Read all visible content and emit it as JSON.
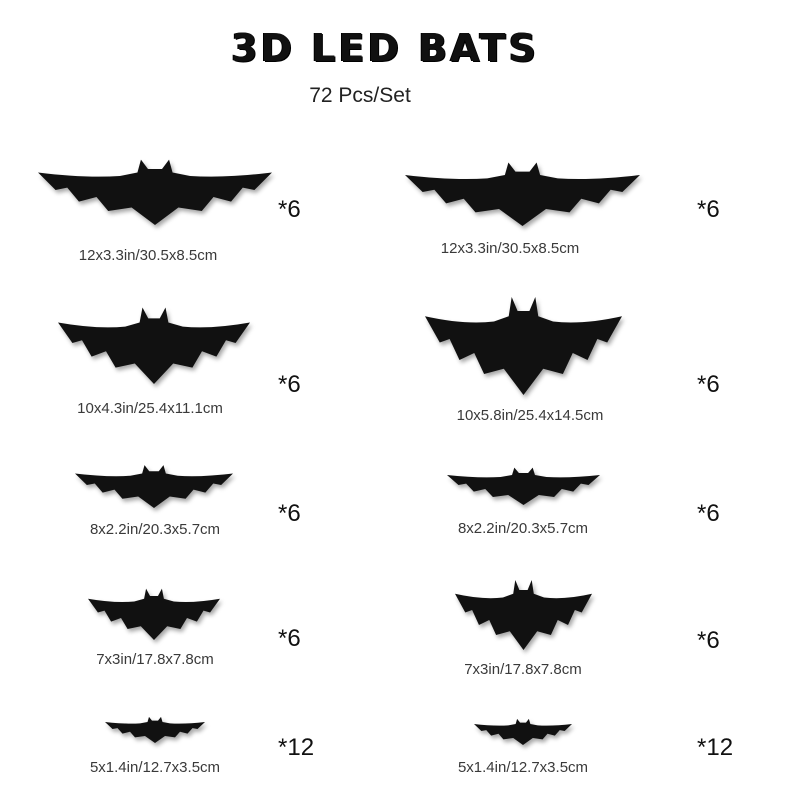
{
  "title": "3D LED BATS",
  "subtitle": "72 Pcs/Set",
  "bat_color": "#111111",
  "items": [
    {
      "size": "12x3.3in/30.5x8.5cm",
      "qty": "*6"
    },
    {
      "size": "12x3.3in/30.5x8.5cm",
      "qty": "*6"
    },
    {
      "size": "10x4.3in/25.4x11.1cm",
      "qty": "*6"
    },
    {
      "size": "10x5.8in/25.4x14.5cm",
      "qty": "*6"
    },
    {
      "size": "8x2.2in/20.3x5.7cm",
      "qty": "*6"
    },
    {
      "size": "8x2.2in/20.3x5.7cm",
      "qty": "*6"
    },
    {
      "size": "7x3in/17.8x7.8cm",
      "qty": "*6"
    },
    {
      "size": "7x3in/17.8x7.8cm",
      "qty": "*6"
    },
    {
      "size": "5x1.4in/12.7x3.5cm",
      "qty": "*12"
    },
    {
      "size": "5x1.4in/12.7x3.5cm",
      "qty": "*12"
    }
  ]
}
